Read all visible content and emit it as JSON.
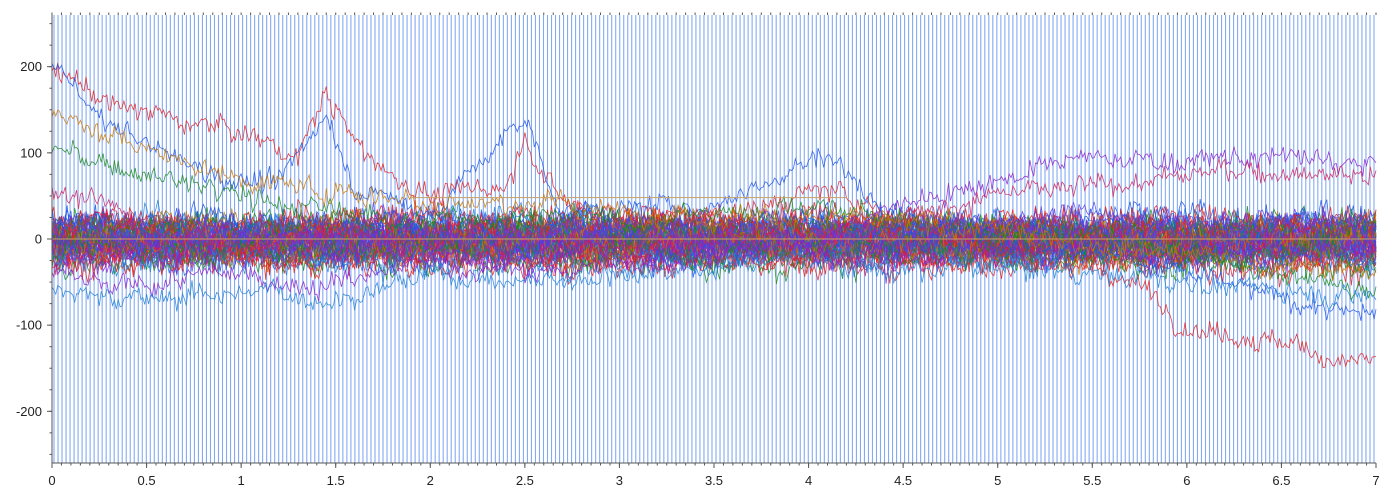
{
  "chart_data": {
    "type": "line",
    "title": "",
    "xlabel": "",
    "ylabel": "",
    "xlim": [
      0,
      7
    ],
    "ylim": [
      -260,
      260
    ],
    "grid": false,
    "legend": "none",
    "x_ticks": [
      "0",
      "0.5",
      "1",
      "1.5",
      "2",
      "2.5",
      "3",
      "3.5",
      "4",
      "4.5",
      "5",
      "5.5",
      "6",
      "6.5",
      "7"
    ],
    "y_ticks": [
      "200",
      "100",
      "0",
      "-100",
      "-200"
    ],
    "background_stripes": {
      "color": "#5b8ef0",
      "count": 330,
      "span": [
        0,
        7
      ]
    },
    "reference_lines": [
      {
        "y": 48,
        "x_range": [
          1.9,
          4.2
        ],
        "color": "#c8a060"
      },
      {
        "y": 0,
        "x_range": [
          0,
          7
        ],
        "color": "#c8a060"
      }
    ],
    "series_colors": [
      "#e02020",
      "#1f55e0",
      "#1a8a1a",
      "#8a20c8",
      "#d0205a",
      "#2080d0",
      "#c87800",
      "#5a40e0"
    ],
    "series": [
      {
        "color": "#e02020",
        "keypoints": [
          [
            0,
            195
          ],
          [
            0.3,
            160
          ],
          [
            0.6,
            140
          ],
          [
            0.9,
            130
          ],
          [
            1.1,
            115
          ],
          [
            1.3,
            95
          ],
          [
            1.45,
            170
          ],
          [
            1.6,
            110
          ],
          [
            1.8,
            75
          ],
          [
            2.0,
            50
          ],
          [
            2.4,
            60
          ],
          [
            2.5,
            120
          ],
          [
            2.7,
            40
          ],
          [
            3.0,
            30
          ],
          [
            3.6,
            25
          ],
          [
            4.1,
            60
          ],
          [
            4.5,
            20
          ],
          [
            5.0,
            -10
          ],
          [
            5.5,
            -30
          ],
          [
            5.8,
            -60
          ],
          [
            6.0,
            -100
          ],
          [
            6.4,
            -115
          ],
          [
            6.8,
            -140
          ],
          [
            7.0,
            -140
          ]
        ]
      },
      {
        "color": "#8a20c8",
        "keypoints": [
          [
            0,
            -40
          ],
          [
            0.3,
            -60
          ],
          [
            0.6,
            -50
          ],
          [
            1.0,
            -40
          ],
          [
            1.4,
            -55
          ],
          [
            2.0,
            -30
          ],
          [
            2.5,
            -40
          ],
          [
            3.0,
            -30
          ],
          [
            3.5,
            -20
          ],
          [
            4.0,
            0
          ],
          [
            4.5,
            40
          ],
          [
            5.0,
            70
          ],
          [
            5.5,
            95
          ],
          [
            6.0,
            90
          ],
          [
            6.5,
            95
          ],
          [
            7.0,
            85
          ]
        ]
      },
      {
        "color": "#1f55e0",
        "keypoints": [
          [
            0,
            210
          ],
          [
            0.2,
            150
          ],
          [
            0.5,
            110
          ],
          [
            0.8,
            80
          ],
          [
            1.2,
            60
          ],
          [
            1.45,
            150
          ],
          [
            1.6,
            60
          ],
          [
            2.0,
            30
          ],
          [
            2.5,
            140
          ],
          [
            2.7,
            30
          ],
          [
            3.5,
            40
          ],
          [
            4.1,
            100
          ],
          [
            4.5,
            10
          ],
          [
            5.0,
            0
          ],
          [
            5.5,
            -10
          ],
          [
            6.0,
            -40
          ],
          [
            6.5,
            -70
          ],
          [
            7.0,
            -90
          ]
        ]
      },
      {
        "color": "#1a8a1a",
        "keypoints": [
          [
            0,
            105
          ],
          [
            0.4,
            80
          ],
          [
            0.8,
            60
          ],
          [
            1.2,
            40
          ],
          [
            1.6,
            30
          ],
          [
            2.0,
            20
          ],
          [
            2.5,
            30
          ],
          [
            3.0,
            20
          ],
          [
            3.5,
            30
          ],
          [
            4.0,
            40
          ],
          [
            4.5,
            20
          ],
          [
            5.0,
            10
          ],
          [
            5.5,
            0
          ],
          [
            6.0,
            -20
          ],
          [
            6.5,
            -40
          ],
          [
            7.0,
            -60
          ]
        ]
      },
      {
        "color": "#d0205a",
        "keypoints": [
          [
            0,
            60
          ],
          [
            0.5,
            20
          ],
          [
            1.0,
            -10
          ],
          [
            1.5,
            10
          ],
          [
            2.0,
            0
          ],
          [
            2.5,
            10
          ],
          [
            3.0,
            -10
          ],
          [
            3.5,
            0
          ],
          [
            4.0,
            10
          ],
          [
            4.5,
            30
          ],
          [
            5.0,
            50
          ],
          [
            5.5,
            60
          ],
          [
            6.0,
            75
          ],
          [
            6.5,
            80
          ],
          [
            7.0,
            75
          ]
        ]
      },
      {
        "color": "#2080d0",
        "keypoints": [
          [
            0,
            -60
          ],
          [
            0.5,
            -70
          ],
          [
            1.0,
            -60
          ],
          [
            1.5,
            -70
          ],
          [
            2.0,
            -40
          ],
          [
            2.5,
            -50
          ],
          [
            3.0,
            -40
          ],
          [
            3.5,
            -30
          ],
          [
            4.0,
            -20
          ],
          [
            4.5,
            -40
          ],
          [
            5.0,
            -30
          ],
          [
            5.5,
            -40
          ],
          [
            6.0,
            -50
          ],
          [
            6.5,
            -60
          ],
          [
            7.0,
            -65
          ]
        ]
      },
      {
        "color": "#c87800",
        "keypoints": [
          [
            0,
            150
          ],
          [
            0.3,
            120
          ],
          [
            0.7,
            90
          ],
          [
            1.0,
            70
          ],
          [
            1.5,
            55
          ],
          [
            2.0,
            45
          ],
          [
            2.6,
            40
          ],
          [
            3.2,
            30
          ],
          [
            4.0,
            25
          ],
          [
            4.6,
            15
          ],
          [
            5.2,
            5
          ],
          [
            5.8,
            -10
          ],
          [
            6.4,
            -30
          ],
          [
            7.0,
            -40
          ]
        ]
      },
      {
        "color": "#5a40e0",
        "keypoints": [
          [
            0,
            20
          ],
          [
            0.5,
            0
          ],
          [
            1.0,
            10
          ],
          [
            1.5,
            -10
          ],
          [
            2.0,
            10
          ],
          [
            2.5,
            0
          ],
          [
            3.0,
            10
          ],
          [
            3.5,
            -10
          ],
          [
            4.0,
            0
          ],
          [
            4.5,
            10
          ],
          [
            5.0,
            20
          ],
          [
            5.5,
            30
          ],
          [
            6.0,
            20
          ],
          [
            6.5,
            25
          ],
          [
            7.0,
            20
          ]
        ]
      }
    ],
    "noise_band": {
      "center": 0,
      "spread": 30,
      "trace_count": 60
    }
  }
}
